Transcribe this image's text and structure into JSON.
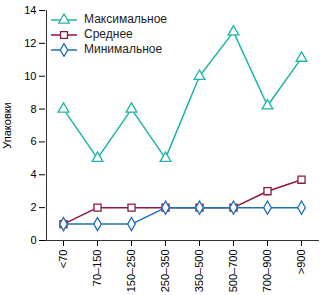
{
  "chart_data": {
    "type": "line",
    "y_label": "Упаковки",
    "categories": [
      "<70",
      "70–150",
      "150–250",
      "250–350",
      "350–500",
      "500–700",
      "700–900",
      ">900"
    ],
    "series": [
      {
        "name": "Максимальное",
        "color": "#1fb5a8",
        "marker": "triangle",
        "values": [
          8,
          5,
          8,
          5,
          10,
          12.7,
          8.2,
          11.1
        ]
      },
      {
        "name": "Среднее",
        "color": "#8b1a3c",
        "marker": "square",
        "values": [
          1,
          2,
          2,
          2,
          2,
          2,
          3,
          3.7
        ]
      },
      {
        "name": "Минимальное",
        "color": "#1f6fb8",
        "marker": "diamond",
        "values": [
          1,
          1,
          1,
          2,
          2,
          2,
          2,
          2
        ]
      }
    ],
    "ylim": [
      0,
      14
    ],
    "yticks": [
      0,
      2,
      4,
      6,
      8,
      10,
      12,
      14
    ],
    "grid": false,
    "legend": "top-left"
  }
}
